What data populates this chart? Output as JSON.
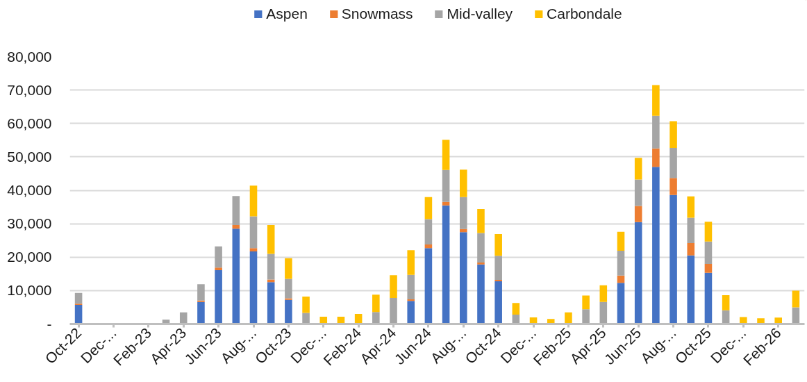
{
  "chart_data": {
    "type": "bar",
    "stacked": true,
    "categories": [
      "Oct-22",
      null,
      "Dec-...",
      null,
      "Feb-23",
      null,
      "Apr-23",
      null,
      "Jun-23",
      null,
      "Aug-...",
      null,
      "Oct-23",
      null,
      "Dec-...",
      null,
      "Feb-24",
      null,
      "Apr-24",
      null,
      "Jun-24",
      null,
      "Aug-...",
      null,
      "Oct-24",
      null,
      "Dec-...",
      null,
      "Feb-25",
      null,
      "Apr-25",
      null,
      "Jun-25",
      null,
      "Aug-...",
      null,
      "Oct-25",
      null,
      "Dec-...",
      null,
      "Feb-26",
      null
    ],
    "series": [
      {
        "name": "Aspen",
        "color": "#4472c4",
        "values": [
          5700,
          null,
          null,
          null,
          null,
          null,
          null,
          6600,
          16100,
          28500,
          21700,
          12500,
          7200,
          null,
          null,
          null,
          null,
          null,
          null,
          6900,
          22700,
          35500,
          27500,
          17800,
          12800,
          null,
          null,
          null,
          null,
          null,
          null,
          12300,
          30500,
          47000,
          38600,
          20500,
          15300,
          null,
          null,
          null,
          null,
          null
        ]
      },
      {
        "name": "Snowmass",
        "color": "#ed7d31",
        "values": [
          400,
          null,
          null,
          null,
          null,
          null,
          null,
          400,
          800,
          1100,
          1000,
          800,
          500,
          null,
          null,
          null,
          null,
          null,
          null,
          500,
          1100,
          1000,
          900,
          600,
          400,
          null,
          null,
          null,
          null,
          null,
          null,
          2200,
          4800,
          5500,
          5100,
          3700,
          2700,
          null,
          null,
          null,
          null,
          null
        ]
      },
      {
        "name": "Mid-valley",
        "color": "#a5a5a5",
        "values": [
          3200,
          null,
          null,
          null,
          null,
          1300,
          3500,
          4900,
          6300,
          8700,
          9500,
          7700,
          5800,
          3300,
          null,
          null,
          null,
          3600,
          7800,
          7300,
          7600,
          9600,
          9600,
          8800,
          7200,
          2800,
          null,
          null,
          null,
          4400,
          6600,
          7400,
          7900,
          9800,
          9000,
          7600,
          6700,
          4100,
          null,
          null,
          null,
          5000
        ]
      },
      {
        "name": "Carbondale",
        "color": "#ffc000",
        "values": [
          null,
          null,
          null,
          null,
          null,
          null,
          null,
          null,
          null,
          null,
          9200,
          8600,
          6200,
          4900,
          2200,
          2200,
          3000,
          5200,
          6800,
          7400,
          6600,
          9000,
          8200,
          7200,
          6500,
          3500,
          2000,
          1500,
          3500,
          4100,
          5000,
          5700,
          6500,
          9200,
          8000,
          6400,
          5900,
          4500,
          2100,
          1700,
          1900,
          5000
        ]
      }
    ],
    "ylim": [
      0,
      80000
    ],
    "yticks": [
      {
        "value": 0,
        "label": "-"
      },
      {
        "value": 10000,
        "label": "10,000"
      },
      {
        "value": 20000,
        "label": "20,000"
      },
      {
        "value": 30000,
        "label": "30,000"
      },
      {
        "value": 40000,
        "label": "40,000"
      },
      {
        "value": 50000,
        "label": "50,000"
      },
      {
        "value": 60000,
        "label": "60,000"
      },
      {
        "value": 70000,
        "label": "70,000"
      },
      {
        "value": 80000,
        "label": "80,000"
      }
    ],
    "grid": "y",
    "legend": "top"
  }
}
